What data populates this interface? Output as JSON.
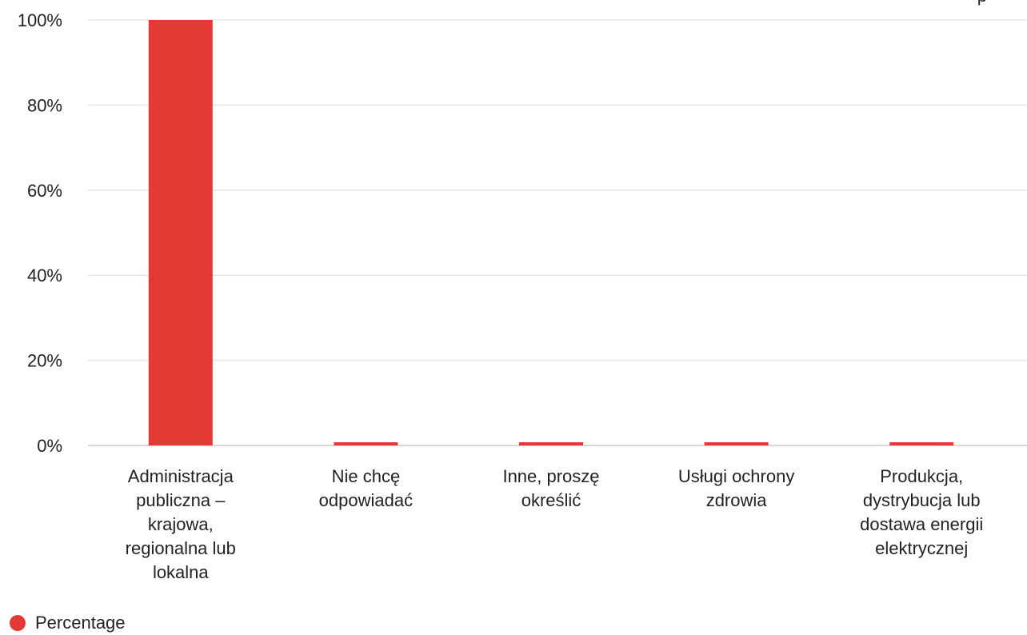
{
  "chart_data": {
    "type": "bar",
    "categories": [
      [
        "Administracja",
        "publiczna –",
        "krajowa,",
        "regionalna lub",
        "lokalna"
      ],
      [
        "Nie chcę",
        "odpowiadać"
      ],
      [
        "Inne, proszę",
        "określić"
      ],
      [
        "Usługi ochrony",
        "zdrowia"
      ],
      [
        "Produkcja,",
        "dystrybucja lub",
        "dostawa energii",
        "elektrycznej"
      ]
    ],
    "series": [
      {
        "name": "Percentage",
        "values": [
          100,
          0,
          0,
          0,
          0
        ],
        "color": "#e53935"
      }
    ],
    "ylim": [
      0,
      100
    ],
    "yticks": [
      0,
      20,
      40,
      60,
      80,
      100
    ],
    "ytick_labels": [
      "0%",
      "20%",
      "40%",
      "60%",
      "80%",
      "100%"
    ],
    "grid": true,
    "legend_position": "bottom-left",
    "corner_text": "p"
  }
}
